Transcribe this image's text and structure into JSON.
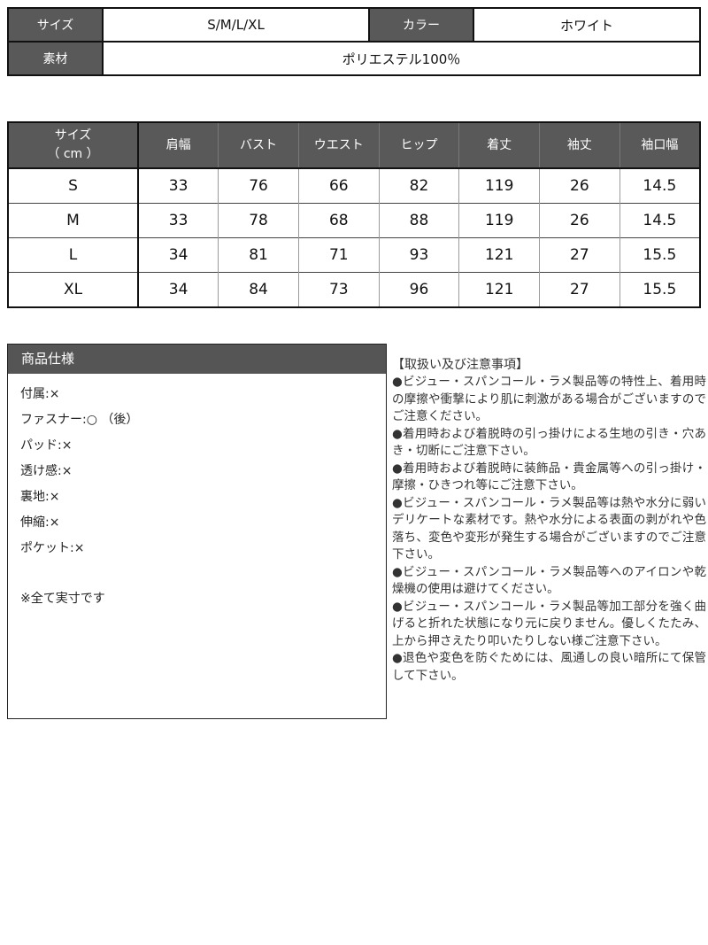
{
  "colors": {
    "header_bg": "#595959",
    "header_text": "#ffffff",
    "table_border": "#111111",
    "body_text": "#222222"
  },
  "info_table": {
    "size_label": "サイズ",
    "size_value": "S/M/L/XL",
    "color_label": "カラー",
    "color_value": "ホワイト",
    "material_label": "素材",
    "material_value": "ポリエステル100％"
  },
  "size_table": {
    "headers": [
      [
        "サイズ",
        "（ cm ）"
      ],
      "肩幅",
      "バスト",
      "ウエスト",
      "ヒップ",
      "着丈",
      "袖丈",
      "袖口幅"
    ],
    "rows": [
      [
        "S",
        "33",
        "76",
        "66",
        "82",
        "119",
        "26",
        "14.5"
      ],
      [
        "M",
        "33",
        "78",
        "68",
        "88",
        "119",
        "26",
        "14.5"
      ],
      [
        "L",
        "34",
        "81",
        "71",
        "93",
        "121",
        "27",
        "15.5"
      ],
      [
        "XL",
        "34",
        "84",
        "73",
        "96",
        "121",
        "27",
        "15.5"
      ]
    ]
  },
  "spec_box": {
    "title": "商品仕様",
    "items": [
      "付属:×",
      "ファスナー:○ （後）",
      "パッド:×",
      "透け感:×",
      "裏地:×",
      "伸縮:×",
      "ポケット:×"
    ],
    "note": "※全て実寸です"
  },
  "notes": {
    "title": "【取扱い及び注意事項】",
    "items": [
      "●ビジュー・スパンコール・ラメ製品等の特性上、着用時の摩擦や衝撃により肌に刺激がある場合がございますのでご注意ください。",
      "●着用時および着脱時の引っ掛けによる生地の引き・穴あき・切断にご注意下さい。",
      "●着用時および着脱時に装飾品・貴金属等への引っ掛け・摩擦・ひきつれ等にご注意下さい。",
      "●ビジュー・スパンコール・ラメ製品等は熱や水分に弱いデリケートな素材です。熱や水分による表面の剥がれや色落ち、変色や変形が発生する場合がございますのでご注意下さい。",
      "●ビジュー・スパンコール・ラメ製品等へのアイロンや乾燥機の使用は避けてください。",
      "●ビジュー・スパンコール・ラメ製品等加工部分を強く曲げると折れた状態になり元に戻りません。優しくたたみ、上から押さえたり叩いたりしない様ご注意下さい。",
      "●退色や変色を防ぐためには、風通しの良い暗所にて保管して下さい。"
    ]
  }
}
